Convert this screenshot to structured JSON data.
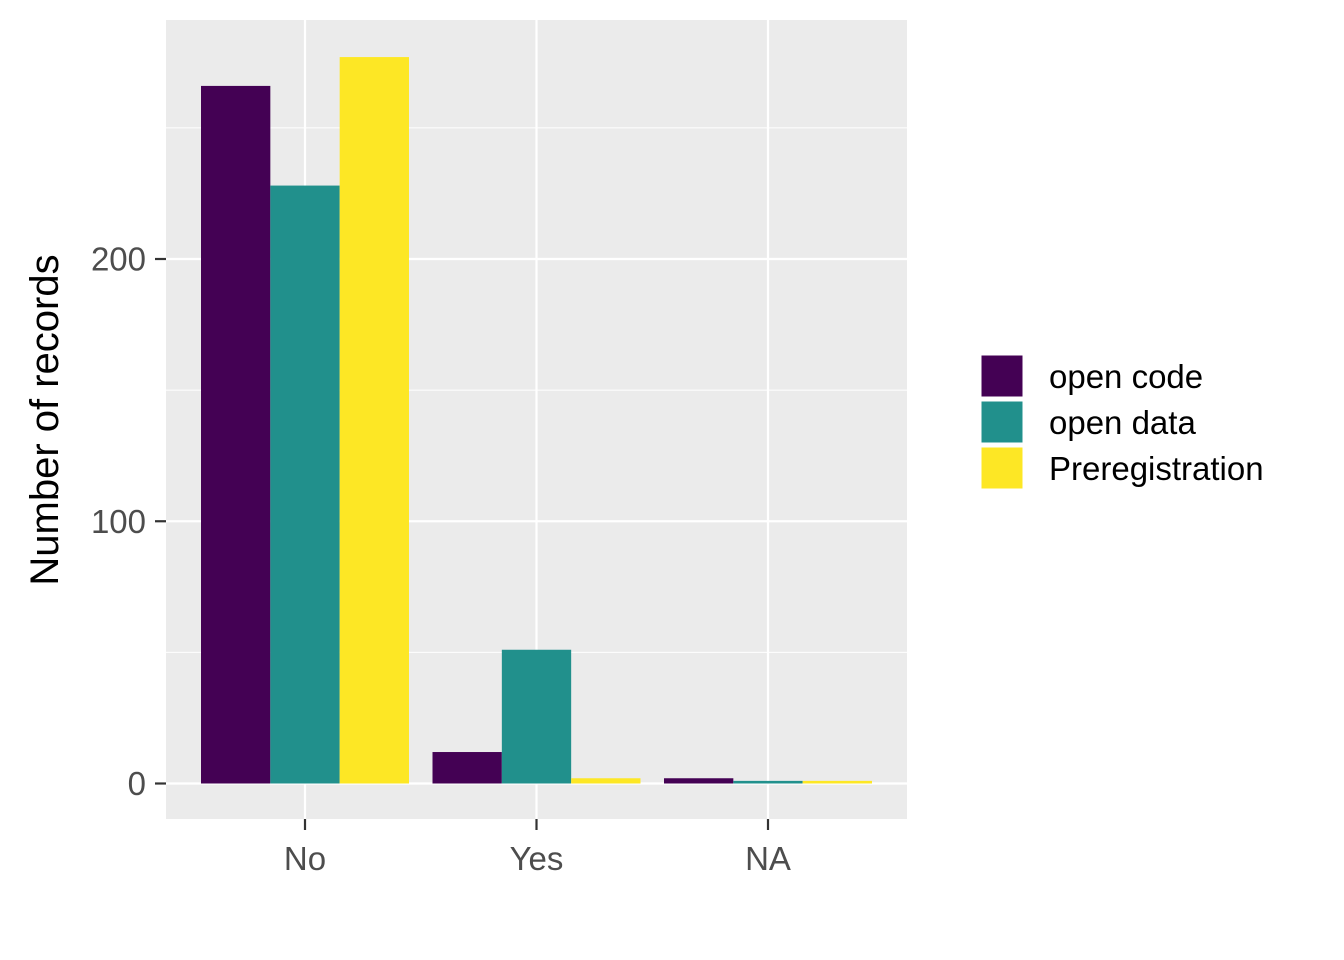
{
  "chart_data": {
    "type": "bar",
    "categories": [
      "No",
      "Yes",
      "NA"
    ],
    "series": [
      {
        "name": "open code",
        "values": [
          266,
          12,
          2
        ],
        "color": "#440154"
      },
      {
        "name": "open data",
        "values": [
          228,
          51,
          1
        ],
        "color": "#21908C"
      },
      {
        "name": "Preregistration",
        "values": [
          277,
          2,
          1
        ],
        "color": "#FDE725"
      }
    ],
    "title": "",
    "xlabel": "",
    "ylabel": "Number of records",
    "ylim": [
      -13.5,
      290
    ],
    "yticks": [
      0,
      100,
      200
    ],
    "ytick_labels": [
      "0",
      "100",
      "200"
    ],
    "grid": true,
    "legend_position": "right",
    "panel_background": "#EBEBEB",
    "grid_color": "#FFFFFF"
  }
}
